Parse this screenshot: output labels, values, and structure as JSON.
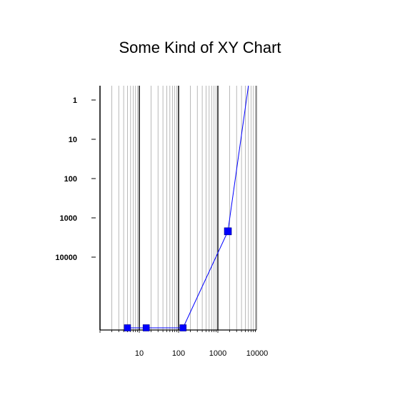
{
  "chart_data": {
    "type": "scatter",
    "title": "Some Kind of XY Chart",
    "xlabel": "",
    "ylabel": "",
    "x_scale": "log",
    "y_scale": "log",
    "y_inverted": true,
    "xlim": [
      1,
      10000
    ],
    "ylim": [
      1,
      10000
    ],
    "x_ticks": [
      {
        "value": 10,
        "label": "10"
      },
      {
        "value": 100,
        "label": "100"
      },
      {
        "value": 1000,
        "label": "1000"
      },
      {
        "value": 10000,
        "label": "10000"
      }
    ],
    "y_ticks": [
      {
        "value": 1,
        "label": "1"
      },
      {
        "value": 10,
        "label": "10"
      },
      {
        "value": 100,
        "label": "100"
      },
      {
        "value": 1000,
        "label": "1000"
      },
      {
        "value": 10000,
        "label": "10000"
      }
    ],
    "grid": true,
    "series": [
      {
        "color": "#0000ff",
        "marker": "square",
        "points": [
          {
            "x": 5,
            "y": null
          },
          {
            "x": 15,
            "y": null
          },
          {
            "x": 130,
            "y": null
          },
          {
            "x": 1800,
            "y": 2200
          },
          {
            "x": 6000,
            "y": 1
          }
        ]
      }
    ]
  }
}
